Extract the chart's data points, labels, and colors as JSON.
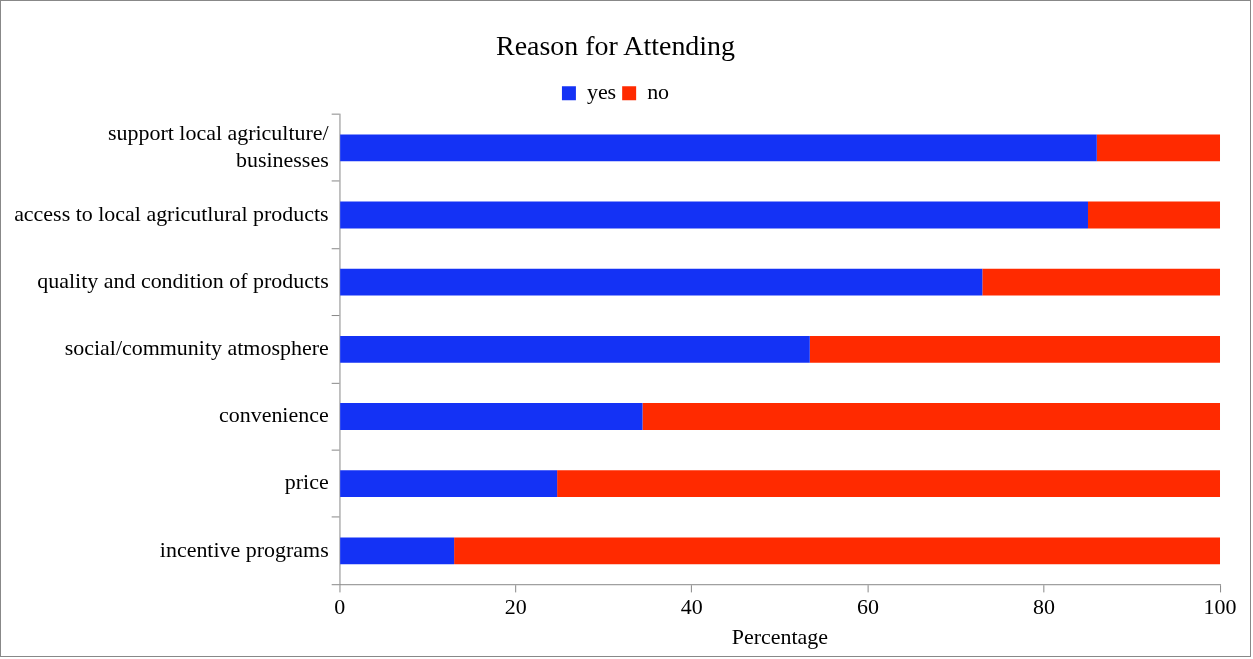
{
  "chart_data": {
    "type": "bar",
    "orientation": "horizontal",
    "stacked": true,
    "title": "Reason for Attending",
    "xlabel": "Percentage",
    "categories": [
      "support local agriculture/\nbusinesses",
      "access to local agricutlural products",
      "quality and condition of products",
      "social/community atmosphere",
      "convenience",
      "price",
      "incentive programs"
    ],
    "series": [
      {
        "name": "yes",
        "color": "#1432f5",
        "values": [
          86,
          85,
          73,
          53.4,
          34.4,
          24.7,
          13
        ]
      },
      {
        "name": "no",
        "color": "#ff2a00",
        "values": [
          14,
          15,
          27,
          46.6,
          65.6,
          75.3,
          87
        ]
      }
    ],
    "xlim": [
      0,
      100
    ],
    "xticks": [
      0,
      20,
      40,
      60,
      80,
      100
    ],
    "grid": false,
    "legend": "top"
  }
}
